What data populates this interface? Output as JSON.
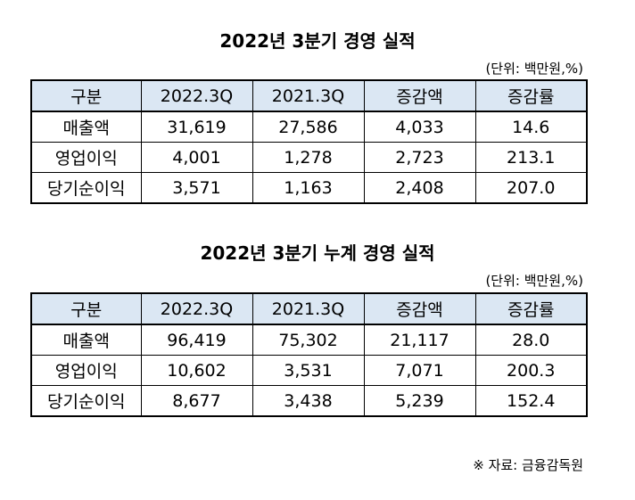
{
  "sections": [
    {
      "title": "2022년 3분기 경영 실적",
      "unit": "(단위: 백만원,%)",
      "headers": [
        "구분",
        "2022.3Q",
        "2021.3Q",
        "증감액",
        "증감률"
      ],
      "rows": [
        [
          "매출액",
          "31,619",
          "27,586",
          "4,033",
          "14.6"
        ],
        [
          "영업이익",
          "4,001",
          "1,278",
          "2,723",
          "213.1"
        ],
        [
          "당기순이익",
          "3,571",
          "1,163",
          "2,408",
          "207.0"
        ]
      ]
    },
    {
      "title": "2022년 3분기 누계 경영 실적",
      "unit": "(단위: 백만원,%)",
      "headers": [
        "구분",
        "2022.3Q",
        "2021.3Q",
        "증감액",
        "증감률"
      ],
      "rows": [
        [
          "매출액",
          "96,419",
          "75,302",
          "21,117",
          "28.0"
        ],
        [
          "영업이익",
          "10,602",
          "3,531",
          "7,071",
          "200.3"
        ],
        [
          "당기순이익",
          "8,677",
          "3,438",
          "5,239",
          "152.4"
        ]
      ]
    }
  ],
  "source": "※ 자료: 금융감독원"
}
